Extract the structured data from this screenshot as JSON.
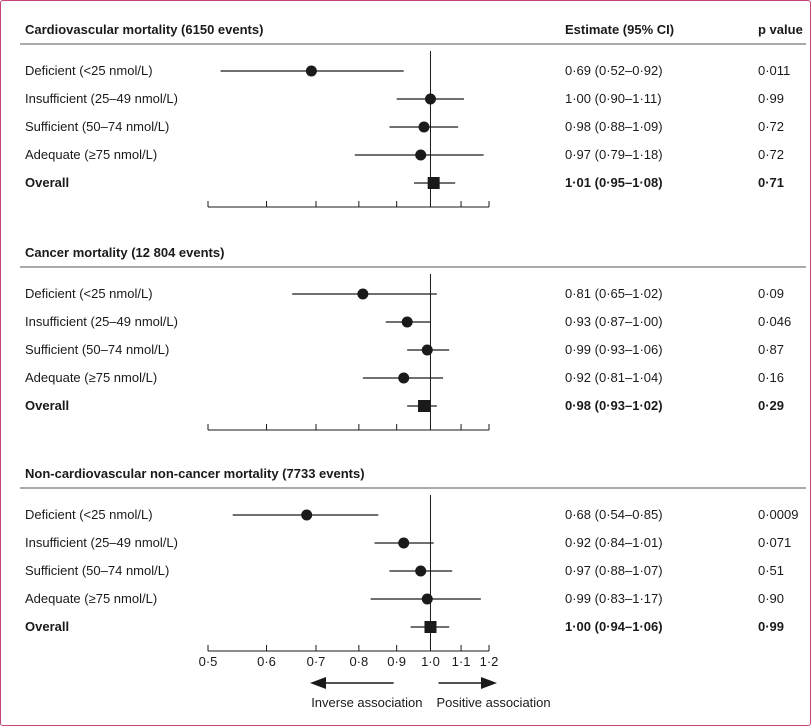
{
  "chart_data": [
    {
      "type": "forest",
      "title": "Cardiovascular mortality (6150 events)",
      "columns": {
        "estimate": "Estimate (95% CI)",
        "p": "p value"
      },
      "x_scale": "log",
      "xlim": [
        0.5,
        1.2
      ],
      "rows": [
        {
          "label": "Deficient (<25 nmol/L)",
          "est": 0.69,
          "lo": 0.52,
          "hi": 0.92,
          "ci_text": "0·69 (0·52–0·92)",
          "p": "0·011",
          "overall": false
        },
        {
          "label": "Insufficient (25–49 nmol/L)",
          "est": 1.0,
          "lo": 0.9,
          "hi": 1.11,
          "ci_text": "1·00 (0·90–1·11)",
          "p": "0·99",
          "overall": false
        },
        {
          "label": "Sufficient (50–74 nmol/L)",
          "est": 0.98,
          "lo": 0.88,
          "hi": 1.09,
          "ci_text": "0·98 (0·88–1·09)",
          "p": "0·72",
          "overall": false
        },
        {
          "label": "Adequate (≥75 nmol/L)",
          "est": 0.97,
          "lo": 0.79,
          "hi": 1.18,
          "ci_text": "0·97 (0·79–1·18)",
          "p": "0·72",
          "overall": false
        },
        {
          "label": "Overall",
          "est": 1.01,
          "lo": 0.95,
          "hi": 1.08,
          "ci_text": "1·01 (0·95–1·08)",
          "p": "0·71",
          "overall": true
        }
      ]
    },
    {
      "type": "forest",
      "title": "Cancer mortality (12 804 events)",
      "x_scale": "log",
      "xlim": [
        0.5,
        1.2
      ],
      "rows": [
        {
          "label": "Deficient (<25 nmol/L)",
          "est": 0.81,
          "lo": 0.65,
          "hi": 1.02,
          "ci_text": "0·81 (0·65–1·02)",
          "p": "0·09",
          "overall": false
        },
        {
          "label": "Insufficient (25–49 nmol/L)",
          "est": 0.93,
          "lo": 0.87,
          "hi": 1.0,
          "ci_text": "0·93 (0·87–1·00)",
          "p": "0·046",
          "overall": false
        },
        {
          "label": "Sufficient (50–74 nmol/L)",
          "est": 0.99,
          "lo": 0.93,
          "hi": 1.06,
          "ci_text": "0·99 (0·93–1·06)",
          "p": "0·87",
          "overall": false
        },
        {
          "label": "Adequate (≥75 nmol/L)",
          "est": 0.92,
          "lo": 0.81,
          "hi": 1.04,
          "ci_text": "0·92 (0·81–1·04)",
          "p": "0·16",
          "overall": false
        },
        {
          "label": "Overall",
          "est": 0.98,
          "lo": 0.93,
          "hi": 1.02,
          "ci_text": "0·98 (0·93–1·02)",
          "p": "0·29",
          "overall": true
        }
      ]
    },
    {
      "type": "forest",
      "title": "Non-cardiovascular non-cancer mortality (7733 events)",
      "x_scale": "log",
      "xlim": [
        0.5,
        1.2
      ],
      "rows": [
        {
          "label": "Deficient (<25 nmol/L)",
          "est": 0.68,
          "lo": 0.54,
          "hi": 0.85,
          "ci_text": "0·68 (0·54–0·85)",
          "p": "0·0009",
          "overall": false
        },
        {
          "label": "Insufficient (25–49 nmol/L)",
          "est": 0.92,
          "lo": 0.84,
          "hi": 1.01,
          "ci_text": "0·92 (0·84–1·01)",
          "p": "0·071",
          "overall": false
        },
        {
          "label": "Sufficient (50–74 nmol/L)",
          "est": 0.97,
          "lo": 0.88,
          "hi": 1.07,
          "ci_text": "0·97 (0·88–1·07)",
          "p": "0·51",
          "overall": false
        },
        {
          "label": "Adequate (≥75 nmol/L)",
          "est": 0.99,
          "lo": 0.83,
          "hi": 1.17,
          "ci_text": "0·99 (0·83–1·17)",
          "p": "0·90",
          "overall": false
        },
        {
          "label": "Overall",
          "est": 1.0,
          "lo": 0.94,
          "hi": 1.06,
          "ci_text": "1·00 (0·94–1·06)",
          "p": "0·99",
          "overall": true
        }
      ],
      "ticks": [
        {
          "value": 0.5,
          "label": "0·5"
        },
        {
          "value": 0.6,
          "label": "0·6"
        },
        {
          "value": 0.7,
          "label": "0·7"
        },
        {
          "value": 0.8,
          "label": "0·8"
        },
        {
          "value": 0.9,
          "label": "0·9"
        },
        {
          "value": 1.0,
          "label": "1·0"
        },
        {
          "value": 1.1,
          "label": "1·1"
        },
        {
          "value": 1.2,
          "label": "1·2"
        }
      ],
      "direction_labels": {
        "left": "Inverse association",
        "right": "Positive association"
      }
    }
  ],
  "colors": {
    "frame": "#c8437a",
    "ink": "#1a1a1a",
    "rule": "#555555"
  }
}
